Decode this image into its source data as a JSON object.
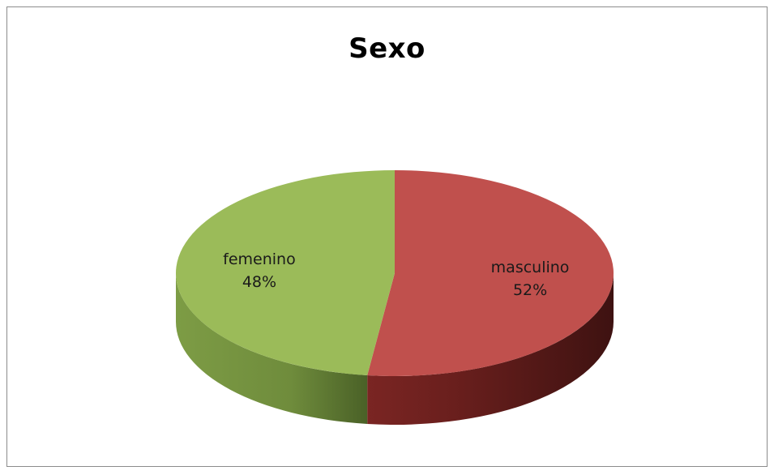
{
  "chart_data": {
    "type": "pie",
    "title": "Sexo",
    "style": "3d",
    "slices": [
      {
        "label": "masculino",
        "value": 52,
        "value_label": "52%",
        "color": "#C0504D"
      },
      {
        "label": "femenino",
        "value": 48,
        "value_label": "48%",
        "color": "#9BBB59"
      }
    ]
  }
}
